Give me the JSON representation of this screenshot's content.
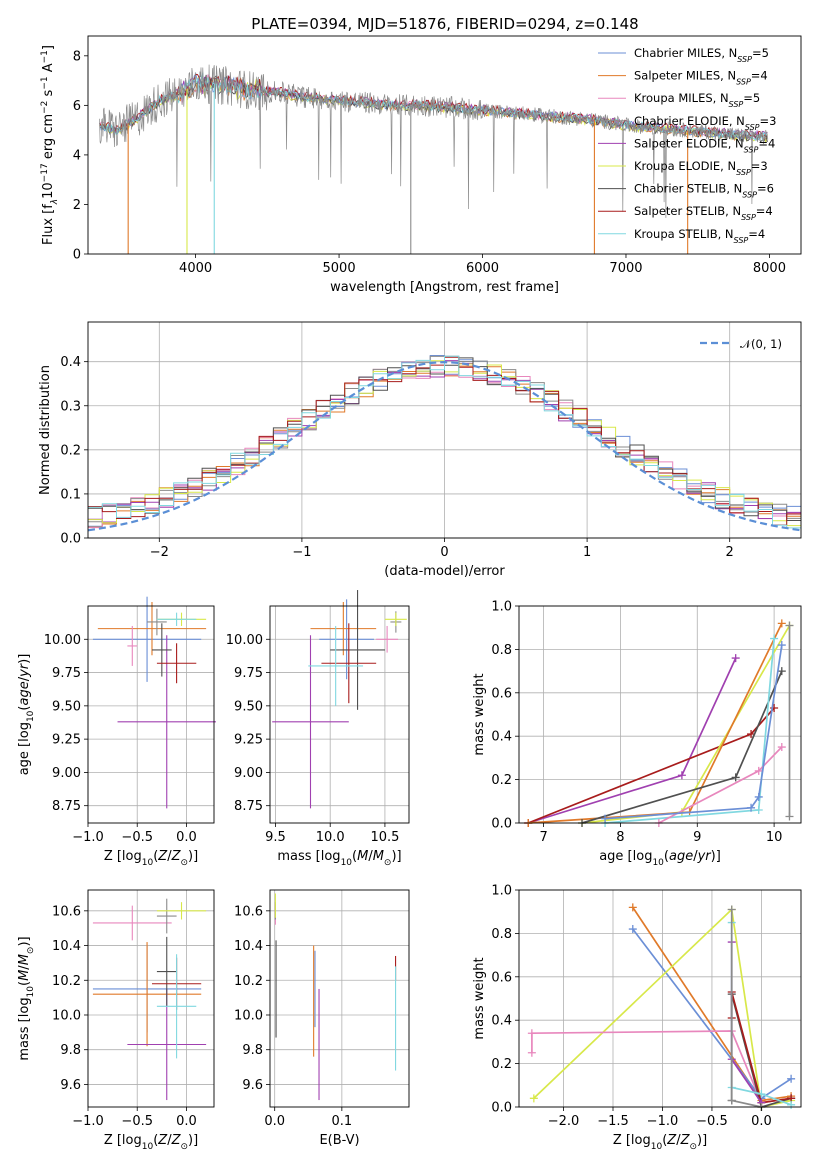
{
  "title": "PLATE=0394, MJD=51876, FIBERID=0294, z=0.148",
  "colors": {
    "Chabrier MILES": "#6b8fd6",
    "Salpeter MILES": "#e07a2a",
    "Kroupa MILES": "#e887bd",
    "Chabrier ELODIE": "#8b8b8b",
    "Salpeter ELODIE": "#a040b0",
    "Kroupa ELODIE": "#d8e84a",
    "Chabrier STELIB": "#505050",
    "Salpeter STELIB": "#a81c1c",
    "Kroupa STELIB": "#80d8e0",
    "normal": "#5b8fd6"
  },
  "chart_data": [
    {
      "id": "spectrum",
      "type": "line",
      "xlabel": "wavelength [Angstrom, rest frame]",
      "ylabel": "Flux [f_λ 10^-17 erg cm^-2 s^-1 A^-1]",
      "xlim": [
        3250,
        8220
      ],
      "ylim": [
        0,
        8.8
      ],
      "xticks": [
        "4000",
        "5000",
        "6000",
        "7000",
        "8000"
      ],
      "yticks": [
        "0",
        "2",
        "4",
        "6",
        "8"
      ],
      "legend_position": "upper right",
      "legend": [
        {
          "label": "Chabrier MILES, N",
          "sub": "SSP",
          "suffix": "=5",
          "key": "Chabrier MILES"
        },
        {
          "label": "Salpeter MILES, N",
          "sub": "SSP",
          "suffix": "=4",
          "key": "Salpeter MILES"
        },
        {
          "label": "Kroupa MILES, N",
          "sub": "SSP",
          "suffix": "=5",
          "key": "Kroupa MILES"
        },
        {
          "label": "Chabrier ELODIE, N",
          "sub": "SSP",
          "suffix": "=3",
          "key": "Chabrier ELODIE"
        },
        {
          "label": "Salpeter ELODIE, N",
          "sub": "SSP",
          "suffix": "=4",
          "key": "Salpeter ELODIE"
        },
        {
          "label": "Kroupa ELODIE, N",
          "sub": "SSP",
          "suffix": "=3",
          "key": "Kroupa ELODIE"
        },
        {
          "label": "Chabrier STELIB, N",
          "sub": "SSP",
          "suffix": "=6",
          "key": "Chabrier STELIB"
        },
        {
          "label": "Salpeter STELIB, N",
          "sub": "SSP",
          "suffix": "=4",
          "key": "Salpeter STELIB"
        },
        {
          "label": "Kroupa STELIB, N",
          "sub": "SSP",
          "suffix": "=4",
          "key": "Kroupa STELIB"
        }
      ],
      "continuum": {
        "x": [
          3330,
          3450,
          3600,
          3750,
          3900,
          4000,
          4200,
          4400,
          4600,
          4800,
          5000,
          5200,
          5400,
          5600,
          5800,
          6000,
          6200,
          6400,
          6600,
          6800,
          7000,
          7200,
          7400,
          7600,
          7800,
          8000
        ],
        "y": [
          5.2,
          5.0,
          5.5,
          6.2,
          6.5,
          6.9,
          6.8,
          6.6,
          6.5,
          6.3,
          6.2,
          6.1,
          6.0,
          6.0,
          5.9,
          5.8,
          5.7,
          5.6,
          5.5,
          5.4,
          5.2,
          5.1,
          5.0,
          4.9,
          4.8,
          4.7
        ]
      },
      "absorption_drops": [
        {
          "x": 3530,
          "y": 0.0,
          "key": "Salpeter MILES"
        },
        {
          "x": 3940,
          "y": 0.0,
          "key": "Kroupa ELODIE"
        },
        {
          "x": 4130,
          "y": 0.0,
          "key": "Kroupa STELIB"
        },
        {
          "x": 5500,
          "y": 0.0,
          "key": "Chabrier ELODIE"
        },
        {
          "x": 6780,
          "y": 0.0,
          "key": "Salpeter MILES"
        },
        {
          "x": 7430,
          "y": 0.0,
          "key": "Salpeter MILES"
        }
      ]
    },
    {
      "id": "residuals",
      "type": "line",
      "xlabel": "(data-model)/error",
      "ylabel": "Normed distribution",
      "xlim": [
        -2.5,
        2.5
      ],
      "ylim": [
        0,
        0.49
      ],
      "xticks": [
        "−2",
        "−1",
        "0",
        "1",
        "2"
      ],
      "yticks": [
        "0.0",
        "0.1",
        "0.2",
        "0.3",
        "0.4"
      ],
      "grid": true,
      "legend_position": "upper right",
      "legend_label": "𝒩(0, 1)",
      "gaussian": {
        "mean": 0,
        "sigma": 1
      },
      "bin_width": 0.1
    },
    {
      "id": "age-vs-Z",
      "type": "scatter",
      "xlabel": "Z [log10(Z/Z⊙)]",
      "ylabel": "age [log10(age/yr)]",
      "xlim": [
        -1.0,
        0.28
      ],
      "ylim": [
        8.62,
        10.25
      ],
      "xticks": [
        "−1.0",
        "−0.5",
        "0.0"
      ],
      "yticks": [
        "8.75",
        "9.00",
        "9.25",
        "9.50",
        "9.75",
        "10.00"
      ],
      "grid": true,
      "points": [
        {
          "key": "Chabrier MILES",
          "x": -0.4,
          "y": 10.0,
          "xerr": 0.55,
          "yerr": 0.32
        },
        {
          "key": "Salpeter MILES",
          "x": -0.35,
          "y": 10.08,
          "xerr": 0.55,
          "yerr": 0.2
        },
        {
          "key": "Kroupa MILES",
          "x": -0.55,
          "y": 9.95,
          "xerr": 0.05,
          "yerr": 0.15
        },
        {
          "key": "Chabrier ELODIE",
          "x": -0.3,
          "y": 10.13,
          "xerr": 0.1,
          "yerr": 0.1
        },
        {
          "key": "Salpeter ELODIE",
          "x": -0.2,
          "y": 9.38,
          "xerr": 0.5,
          "yerr": 0.65
        },
        {
          "key": "Kroupa ELODIE",
          "x": -0.05,
          "y": 10.15,
          "xerr": 0.25,
          "yerr": 0.05
        },
        {
          "key": "Chabrier STELIB",
          "x": -0.25,
          "y": 9.92,
          "xerr": 0.1,
          "yerr": 0.2
        },
        {
          "key": "Salpeter STELIB",
          "x": -0.1,
          "y": 9.82,
          "xerr": 0.2,
          "yerr": 0.15
        },
        {
          "key": "Kroupa STELIB",
          "x": -0.1,
          "y": 10.15,
          "xerr": 0.2,
          "yerr": 0.05
        }
      ]
    },
    {
      "id": "age-vs-mass",
      "type": "scatter",
      "xlabel": "mass [log10(M/M⊙)]",
      "ylabel": "",
      "xlim": [
        9.45,
        10.72
      ],
      "ylim": [
        8.62,
        10.25
      ],
      "xticks": [
        "9.5",
        "10.0",
        "10.5"
      ],
      "yticks": [
        "8.75",
        "9.00",
        "9.25",
        "9.50",
        "9.75",
        "10.00"
      ],
      "grid": true,
      "points": [
        {
          "key": "Chabrier MILES",
          "x": 10.15,
          "y": 10.0,
          "xerr": 0.25,
          "yerr": 0.3
        },
        {
          "key": "Salpeter MILES",
          "x": 10.12,
          "y": 10.08,
          "xerr": 0.3,
          "yerr": 0.2
        },
        {
          "key": "Kroupa MILES",
          "x": 10.52,
          "y": 10.0,
          "xerr": 0.1,
          "yerr": 0.1
        },
        {
          "key": "Chabrier ELODIE",
          "x": 10.6,
          "y": 10.13,
          "xerr": 0.05,
          "yerr": 0.08
        },
        {
          "key": "Salpeter ELODIE",
          "x": 9.82,
          "y": 9.38,
          "xerr": 0.35,
          "yerr": 0.65
        },
        {
          "key": "Kroupa ELODIE",
          "x": 10.6,
          "y": 10.15,
          "xerr": 0.1,
          "yerr": 0.05
        },
        {
          "key": "Chabrier STELIB",
          "x": 10.25,
          "y": 9.92,
          "xerr": 0.25,
          "yerr": 0.45
        },
        {
          "key": "Salpeter STELIB",
          "x": 10.17,
          "y": 9.82,
          "xerr": 0.25,
          "yerr": 0.3
        },
        {
          "key": "Kroupa STELIB",
          "x": 10.05,
          "y": 9.8,
          "xerr": 0.25,
          "yerr": 0.3
        }
      ]
    },
    {
      "id": "mass-weight-vs-age",
      "type": "line",
      "xlabel": "age [log10(age/yr)]",
      "ylabel": "mass weight",
      "xlim": [
        6.68,
        10.35
      ],
      "ylim": [
        0,
        1.0
      ],
      "xticks": [
        "7",
        "8",
        "9",
        "10"
      ],
      "yticks": [
        "0.0",
        "0.2",
        "0.4",
        "0.6",
        "0.8",
        "1.0"
      ],
      "grid": true,
      "series": [
        {
          "key": "Salpeter ELODIE",
          "x": [
            6.8,
            8.8,
            9.5
          ],
          "y": [
            0.0,
            0.22,
            0.76
          ]
        },
        {
          "key": "Salpeter STELIB",
          "x": [
            6.8,
            9.7,
            10.0
          ],
          "y": [
            0.0,
            0.41,
            0.53
          ]
        },
        {
          "key": "Kroupa ELODIE",
          "x": [
            7.5,
            8.8,
            10.2
          ],
          "y": [
            0.0,
            0.05,
            0.91
          ]
        },
        {
          "key": "Salpeter MILES",
          "x": [
            6.8,
            8.9,
            10.1
          ],
          "y": [
            0.0,
            0.05,
            0.92
          ]
        },
        {
          "key": "Chabrier STELIB",
          "x": [
            7.5,
            9.5,
            10.1
          ],
          "y": [
            0.0,
            0.21,
            0.7
          ]
        },
        {
          "key": "Kroupa STELIB",
          "x": [
            7.8,
            9.8,
            10.0
          ],
          "y": [
            0.0,
            0.06,
            0.85
          ]
        },
        {
          "key": "Kroupa MILES",
          "x": [
            8.5,
            9.8,
            10.1
          ],
          "y": [
            0.0,
            0.24,
            0.35
          ]
        },
        {
          "key": "Chabrier MILES",
          "x": [
            7.8,
            9.7,
            9.8,
            10.1
          ],
          "y": [
            0.02,
            0.07,
            0.12,
            0.82
          ]
        },
        {
          "key": "Chabrier ELODIE",
          "x": [
            10.2,
            10.2
          ],
          "y": [
            0.03,
            0.91
          ]
        }
      ]
    },
    {
      "id": "mass-vs-Z",
      "type": "scatter",
      "xlabel": "Z [log10(Z/Z⊙)]",
      "ylabel": "mass [log10(M/M⊙)]",
      "xlim": [
        -1.0,
        0.28
      ],
      "ylim": [
        9.47,
        10.72
      ],
      "xticks": [
        "−1.0",
        "−0.5",
        "0.0"
      ],
      "yticks": [
        "9.6",
        "9.8",
        "10.0",
        "10.2",
        "10.4",
        "10.6"
      ],
      "grid": true,
      "points": [
        {
          "key": "Chabrier MILES",
          "x": -0.4,
          "y": 10.15,
          "xerr": 0.55,
          "yerr": 0.25
        },
        {
          "key": "Salpeter MILES",
          "x": -0.4,
          "y": 10.12,
          "xerr": 0.55,
          "yerr": 0.3
        },
        {
          "key": "Kroupa MILES",
          "x": -0.55,
          "y": 10.53,
          "xerr": 0.4,
          "yerr": 0.1
        },
        {
          "key": "Chabrier ELODIE",
          "x": -0.2,
          "y": 10.57,
          "xerr": 0.1,
          "yerr": 0.1
        },
        {
          "key": "Salpeter ELODIE",
          "x": -0.2,
          "y": 9.83,
          "xerr": 0.4,
          "yerr": 0.32
        },
        {
          "key": "Kroupa ELODIE",
          "x": -0.05,
          "y": 10.6,
          "xerr": 0.25,
          "yerr": 0.05
        },
        {
          "key": "Chabrier STELIB",
          "x": -0.2,
          "y": 10.25,
          "xerr": 0.1,
          "yerr": 0.2
        },
        {
          "key": "Salpeter STELIB",
          "x": -0.1,
          "y": 10.18,
          "xerr": 0.25,
          "yerr": 0.15
        },
        {
          "key": "Kroupa STELIB",
          "x": -0.1,
          "y": 10.05,
          "xerr": 0.2,
          "yerr": 0.3
        }
      ]
    },
    {
      "id": "mass-vs-EBV",
      "type": "scatter",
      "xlabel": "E(B-V)",
      "ylabel": "",
      "xlim": [
        -0.007,
        0.2
      ],
      "ylim": [
        9.47,
        10.72
      ],
      "xticks": [
        "0.0",
        "0.1"
      ],
      "yticks": [
        "9.6",
        "9.8",
        "10.0",
        "10.2",
        "10.4",
        "10.6"
      ],
      "grid": true,
      "points": [
        {
          "key": "Chabrier MILES",
          "x": 0.06,
          "y": 10.15,
          "xerr": 0,
          "yerr": 0.22
        },
        {
          "key": "Salpeter MILES",
          "x": 0.058,
          "y": 10.08,
          "xerr": 0,
          "yerr": 0.32
        },
        {
          "key": "Kroupa MILES",
          "x": 0.001,
          "y": 10.58,
          "xerr": 0,
          "yerr": 0.06
        },
        {
          "key": "Chabrier ELODIE",
          "x": 0.001,
          "y": 10.6,
          "xerr": 0,
          "yerr": 0.05
        },
        {
          "key": "Salpeter ELODIE",
          "x": 0.066,
          "y": 9.83,
          "xerr": 0,
          "yerr": 0.32
        },
        {
          "key": "Kroupa ELODIE",
          "x": 0.001,
          "y": 10.63,
          "xerr": 0,
          "yerr": 0.07
        },
        {
          "key": "Chabrier STELIB",
          "x": 0.002,
          "y": 10.15,
          "xerr": 0,
          "yerr": 0.28
        },
        {
          "key": "Salpeter STELIB",
          "x": 0.18,
          "y": 10.27,
          "xerr": 0,
          "yerr": 0.07
        },
        {
          "key": "Kroupa STELIB",
          "x": 0.18,
          "y": 9.98,
          "xerr": 0,
          "yerr": 0.3
        }
      ]
    },
    {
      "id": "mass-weight-vs-Z",
      "type": "line",
      "xlabel": "Z [log10(Z/Z⊙)]",
      "ylabel": "mass weight",
      "xlim": [
        -2.45,
        0.4
      ],
      "ylim": [
        0,
        1.0
      ],
      "xticks": [
        "−2.0",
        "−1.5",
        "−1.0",
        "−0.5",
        "0.0"
      ],
      "yticks": [
        "0.0",
        "0.2",
        "0.4",
        "0.6",
        "0.8",
        "1.0"
      ],
      "grid": true,
      "series": [
        {
          "key": "Salpeter MILES",
          "x": [
            -1.3,
            0.0,
            0.3
          ],
          "y": [
            0.92,
            0.03,
            0.05
          ]
        },
        {
          "key": "Chabrier MILES",
          "x": [
            -1.3,
            0.0,
            0.3
          ],
          "y": [
            0.82,
            0.04,
            0.13
          ]
        },
        {
          "key": "Kroupa ELODIE",
          "x": [
            -2.3,
            -0.3,
            0.0,
            0.3
          ],
          "y": [
            0.04,
            0.91,
            0.0,
            0.03
          ]
        },
        {
          "key": "Kroupa MILES",
          "x": [
            -2.32,
            -2.32,
            -0.3,
            0.0,
            0.3
          ],
          "y": [
            0.25,
            0.34,
            0.35,
            0.02,
            0.04
          ]
        },
        {
          "key": "Chabrier STELIB",
          "x": [
            -0.3,
            -0.3,
            0.0,
            0.3
          ],
          "y": [
            0.03,
            0.52,
            0.0,
            0.04
          ]
        },
        {
          "key": "Salpeter STELIB",
          "x": [
            -0.3,
            -0.3,
            0.0,
            0.3
          ],
          "y": [
            0.41,
            0.53,
            0.02,
            0.04
          ]
        },
        {
          "key": "Salpeter ELODIE",
          "x": [
            -0.3,
            -0.3,
            0.0
          ],
          "y": [
            0.76,
            0.22,
            0.02
          ]
        },
        {
          "key": "Kroupa STELIB",
          "x": [
            -0.3,
            -0.3,
            0.0,
            0.3
          ],
          "y": [
            0.85,
            0.09,
            0.06,
            0.01
          ]
        },
        {
          "key": "Chabrier ELODIE",
          "x": [
            -0.3,
            -0.3,
            0.0
          ],
          "y": [
            0.91,
            0.03,
            0.0
          ]
        }
      ]
    }
  ]
}
